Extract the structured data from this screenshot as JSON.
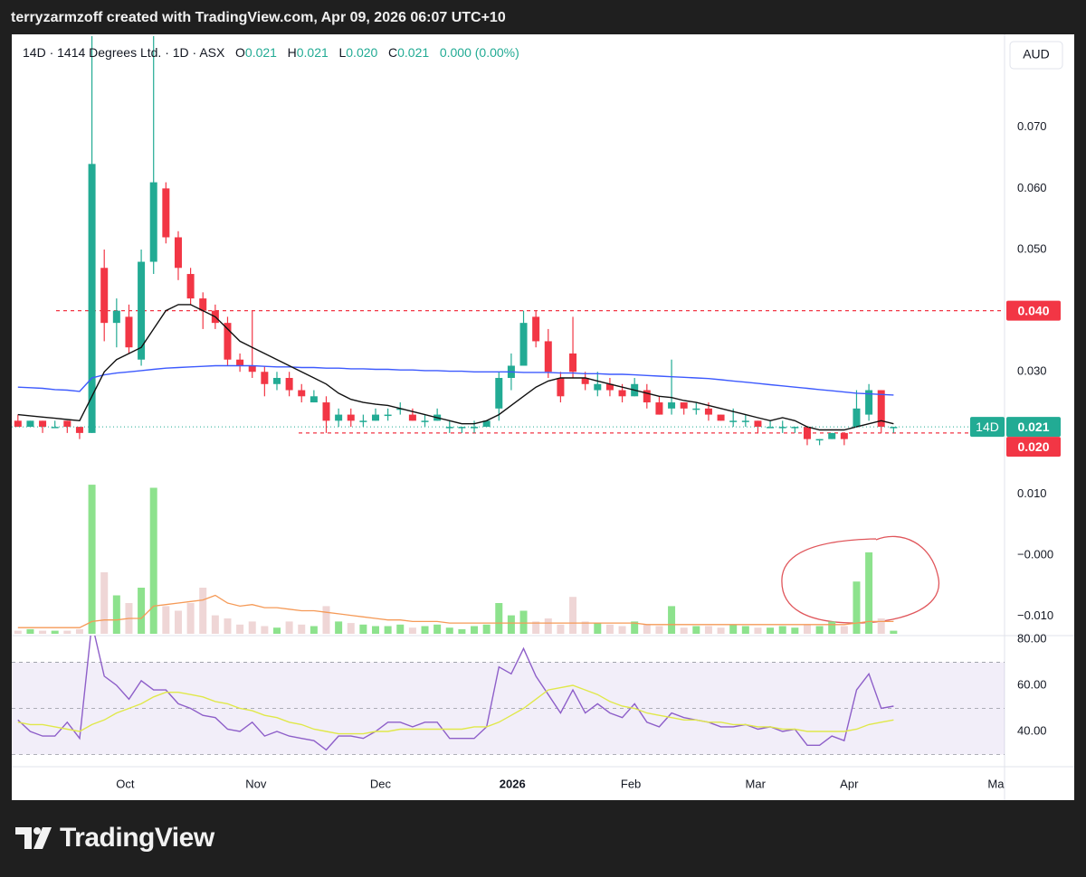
{
  "header": "terryzarmzoff created with TradingView.com, Apr 09, 2026 06:07 UTC+10",
  "legend": {
    "symbol": "14D · 1414 Degrees Ltd. · 1D · ASX",
    "fields": [
      {
        "label": "O",
        "value": "0.021"
      },
      {
        "label": "H",
        "value": "0.021"
      },
      {
        "label": "L",
        "value": "0.020"
      },
      {
        "label": "C",
        "value": "0.021"
      }
    ],
    "change": "0.000 (0.00%)"
  },
  "currency": "AUD",
  "footer": "TradingView",
  "chart_data": [
    {
      "type": "candlestick",
      "up_color": "#22ab94",
      "down_color": "#f23645",
      "xlim": [
        -0.5,
        80
      ],
      "xticks": [
        {
          "value": 8.7,
          "label": "Oct"
        },
        {
          "value": 19.3,
          "label": "Nov"
        },
        {
          "value": 29.4,
          "label": "Dec"
        },
        {
          "value": 40.1,
          "label": "2026"
        },
        {
          "value": 49.7,
          "label": "Feb"
        },
        {
          "value": 59.8,
          "label": "Mar"
        },
        {
          "value": 67.4,
          "label": "Apr"
        },
        {
          "value": 79.3,
          "label": "Ma"
        }
      ],
      "ylim": [
        -0.0127,
        0.0849
      ],
      "yticks": [
        {
          "value": 0.07,
          "label": "0.070"
        },
        {
          "value": 0.06,
          "label": "0.060"
        },
        {
          "value": 0.05,
          "label": "0.050"
        },
        {
          "value": 0.03,
          "label": "0.030"
        },
        {
          "value": 0.01,
          "label": "0.010"
        },
        {
          "value": 0,
          "label": "−0.000"
        },
        {
          "value": -0.01,
          "label": "−0.010"
        }
      ],
      "ohlc": [
        [
          0.022,
          0.023,
          0.021,
          0.021
        ],
        [
          0.021,
          0.022,
          0.021,
          0.022
        ],
        [
          0.022,
          0.022,
          0.02,
          0.021
        ],
        [
          0.021,
          0.022,
          0.021,
          0.021
        ],
        [
          0.022,
          0.022,
          0.02,
          0.021
        ],
        [
          0.021,
          0.021,
          0.019,
          0.02
        ],
        [
          0.02,
          0.085,
          0.02,
          0.064
        ],
        [
          0.047,
          0.05,
          0.035,
          0.038
        ],
        [
          0.038,
          0.042,
          0.034,
          0.04
        ],
        [
          0.039,
          0.041,
          0.033,
          0.034
        ],
        [
          0.032,
          0.05,
          0.031,
          0.048
        ],
        [
          0.048,
          0.085,
          0.046,
          0.061
        ],
        [
          0.06,
          0.061,
          0.051,
          0.052
        ],
        [
          0.052,
          0.053,
          0.045,
          0.047
        ],
        [
          0.046,
          0.047,
          0.041,
          0.042
        ],
        [
          0.042,
          0.043,
          0.037,
          0.04
        ],
        [
          0.04,
          0.041,
          0.037,
          0.038
        ],
        [
          0.038,
          0.039,
          0.031,
          0.032
        ],
        [
          0.032,
          0.033,
          0.03,
          0.031
        ],
        [
          0.031,
          0.04,
          0.029,
          0.03
        ],
        [
          0.03,
          0.031,
          0.026,
          0.028
        ],
        [
          0.028,
          0.03,
          0.027,
          0.029
        ],
        [
          0.029,
          0.03,
          0.026,
          0.027
        ],
        [
          0.027,
          0.028,
          0.025,
          0.026
        ],
        [
          0.025,
          0.027,
          0.025,
          0.026
        ],
        [
          0.025,
          0.026,
          0.02,
          0.022
        ],
        [
          0.022,
          0.024,
          0.021,
          0.023
        ],
        [
          0.023,
          0.024,
          0.021,
          0.022
        ],
        [
          0.022,
          0.023,
          0.021,
          0.022
        ],
        [
          0.022,
          0.024,
          0.022,
          0.023
        ],
        [
          0.023,
          0.024,
          0.022,
          0.023
        ],
        [
          0.024,
          0.025,
          0.023,
          0.024
        ],
        [
          0.023,
          0.024,
          0.022,
          0.022
        ],
        [
          0.022,
          0.023,
          0.021,
          0.022
        ],
        [
          0.022,
          0.024,
          0.022,
          0.023
        ],
        [
          0.021,
          0.022,
          0.02,
          0.021
        ],
        [
          0.021,
          0.021,
          0.02,
          0.021
        ],
        [
          0.021,
          0.022,
          0.02,
          0.021
        ],
        [
          0.021,
          0.022,
          0.021,
          0.022
        ],
        [
          0.024,
          0.03,
          0.022,
          0.029
        ],
        [
          0.029,
          0.033,
          0.027,
          0.031
        ],
        [
          0.031,
          0.04,
          0.031,
          0.038
        ],
        [
          0.039,
          0.04,
          0.034,
          0.035
        ],
        [
          0.035,
          0.037,
          0.029,
          0.03
        ],
        [
          0.029,
          0.03,
          0.025,
          0.026
        ],
        [
          0.033,
          0.039,
          0.029,
          0.03
        ],
        [
          0.029,
          0.03,
          0.027,
          0.028
        ],
        [
          0.027,
          0.03,
          0.026,
          0.028
        ],
        [
          0.028,
          0.029,
          0.026,
          0.027
        ],
        [
          0.027,
          0.028,
          0.025,
          0.026
        ],
        [
          0.026,
          0.029,
          0.026,
          0.028
        ],
        [
          0.027,
          0.028,
          0.024,
          0.025
        ],
        [
          0.025,
          0.026,
          0.023,
          0.023
        ],
        [
          0.024,
          0.032,
          0.023,
          0.025
        ],
        [
          0.025,
          0.025,
          0.023,
          0.024
        ],
        [
          0.024,
          0.025,
          0.023,
          0.024
        ],
        [
          0.024,
          0.025,
          0.022,
          0.023
        ],
        [
          0.023,
          0.023,
          0.022,
          0.022
        ],
        [
          0.022,
          0.024,
          0.021,
          0.022
        ],
        [
          0.022,
          0.023,
          0.021,
          0.022
        ],
        [
          0.022,
          0.022,
          0.02,
          0.021
        ],
        [
          0.021,
          0.022,
          0.021,
          0.021
        ],
        [
          0.021,
          0.022,
          0.02,
          0.021
        ],
        [
          0.021,
          0.021,
          0.02,
          0.021
        ],
        [
          0.021,
          0.021,
          0.018,
          0.019
        ],
        [
          0.019,
          0.019,
          0.018,
          0.019
        ],
        [
          0.019,
          0.02,
          0.019,
          0.02
        ],
        [
          0.02,
          0.02,
          0.018,
          0.019
        ],
        [
          0.021,
          0.027,
          0.021,
          0.024
        ],
        [
          0.023,
          0.028,
          0.022,
          0.027
        ],
        [
          0.027,
          0.027,
          0.02,
          0.021
        ],
        [
          0.021,
          0.021,
          0.02,
          0.021
        ]
      ],
      "lines": [
        {
          "color": "#3d5afe",
          "values": [
            0.0275,
            0.0274,
            0.0273,
            0.0271,
            0.027,
            0.0268,
            0.029,
            0.0295,
            0.0298,
            0.03,
            0.0302,
            0.0304,
            0.0306,
            0.0307,
            0.0308,
            0.0309,
            0.031,
            0.031,
            0.031,
            0.031,
            0.0309,
            0.0308,
            0.0308,
            0.0307,
            0.0307,
            0.0306,
            0.0306,
            0.0305,
            0.0305,
            0.0304,
            0.0304,
            0.0303,
            0.0303,
            0.0302,
            0.0302,
            0.0301,
            0.0301,
            0.03,
            0.03,
            0.03,
            0.03,
            0.0299,
            0.0299,
            0.0299,
            0.0298,
            0.0298,
            0.0297,
            0.0297,
            0.0296,
            0.0296,
            0.0295,
            0.0294,
            0.0293,
            0.0292,
            0.0291,
            0.029,
            0.0289,
            0.0287,
            0.0285,
            0.0283,
            0.0281,
            0.0279,
            0.0277,
            0.0275,
            0.0273,
            0.0271,
            0.0269,
            0.0267,
            0.0265,
            0.0264,
            0.0263,
            0.0262
          ]
        },
        {
          "color": "#111111",
          "values": [
            0.023,
            0.0228,
            0.0226,
            0.0224,
            0.0222,
            0.022,
            0.026,
            0.03,
            0.032,
            0.033,
            0.034,
            0.037,
            0.04,
            0.041,
            0.041,
            0.04,
            0.039,
            0.037,
            0.035,
            0.034,
            0.033,
            0.032,
            0.031,
            0.03,
            0.029,
            0.028,
            0.0265,
            0.0255,
            0.025,
            0.0247,
            0.0245,
            0.024,
            0.0235,
            0.023,
            0.0225,
            0.022,
            0.0215,
            0.0215,
            0.022,
            0.023,
            0.0245,
            0.026,
            0.0275,
            0.0285,
            0.029,
            0.029,
            0.029,
            0.0285,
            0.028,
            0.0275,
            0.027,
            0.0265,
            0.026,
            0.0258,
            0.0253,
            0.025,
            0.0245,
            0.024,
            0.0235,
            0.023,
            0.0225,
            0.022,
            0.0225,
            0.022,
            0.021,
            0.0205,
            0.0205,
            0.0205,
            0.021,
            0.0215,
            0.022,
            0.0215
          ]
        }
      ],
      "hlines": [
        {
          "value": 0.04,
          "color": "#f23645"
        },
        {
          "value": 0.02,
          "color": "#f23645"
        }
      ],
      "price_labels": [
        {
          "value": 0.04,
          "label": "0.040",
          "color": "#f23645"
        },
        {
          "value": 0.021,
          "label": "0.021",
          "tag": "14D",
          "color": "#22ab94"
        },
        {
          "value": 0.02,
          "label": "0.020",
          "color": "#f23645"
        }
      ]
    },
    {
      "type": "bar",
      "up_color": "#8de28d",
      "down_color": "#efd6d6",
      "ylim": [
        0,
        100
      ],
      "values": [
        2,
        3,
        2,
        2,
        2,
        3,
        97,
        40,
        25,
        20,
        30,
        95,
        18,
        15,
        20,
        30,
        12,
        10,
        6,
        8,
        5,
        4,
        8,
        6,
        5,
        18,
        8,
        7,
        6,
        5,
        5,
        6,
        4,
        5,
        6,
        4,
        3,
        5,
        6,
        20,
        12,
        15,
        8,
        10,
        6,
        24,
        8,
        7,
        6,
        5,
        8,
        6,
        5,
        18,
        4,
        5,
        5,
        4,
        6,
        5,
        4,
        4,
        5,
        4,
        6,
        5,
        8,
        5,
        34,
        53,
        10,
        2
      ],
      "ma": {
        "color": "#f59a57",
        "values": [
          4,
          4,
          4,
          4,
          4,
          4,
          8,
          9,
          9,
          10,
          10,
          18,
          19,
          20,
          21,
          22,
          25,
          20,
          18,
          19,
          17,
          17,
          16,
          15,
          15,
          14,
          13,
          12,
          11,
          10,
          9,
          9,
          8,
          8,
          8,
          7,
          7,
          7,
          7,
          7,
          7,
          7,
          7,
          7,
          7,
          7,
          7,
          7,
          7,
          7,
          7,
          6,
          6,
          6,
          6,
          6,
          6,
          6,
          6,
          6,
          6,
          6,
          6,
          6,
          6,
          6,
          6,
          6,
          7,
          8,
          8,
          8
        ]
      }
    },
    {
      "type": "line",
      "ylim": [
        24.7,
        81.6
      ],
      "yticks": [
        {
          "value": 80,
          "label": "80.00"
        },
        {
          "value": 60,
          "label": "60.00"
        },
        {
          "value": 40,
          "label": "40.00"
        }
      ],
      "bands": [
        30,
        50,
        70
      ],
      "band_fill": "rgba(126,87,194,0.10)",
      "series": [
        {
          "color": "#8e5fc9",
          "values": [
            45,
            40,
            38,
            38,
            44,
            37,
            87,
            64,
            60,
            54,
            62,
            58,
            58,
            52,
            50,
            47,
            46,
            41,
            40,
            44,
            38,
            40,
            38,
            37,
            36,
            32,
            38,
            38,
            37,
            40,
            44,
            44,
            42,
            44,
            44,
            37,
            37,
            37,
            42,
            68,
            65,
            76,
            64,
            56,
            48,
            58,
            48,
            52,
            48,
            46,
            52,
            44,
            42,
            48,
            46,
            45,
            44,
            42,
            42,
            43,
            41,
            42,
            40,
            41,
            34,
            34,
            38,
            36,
            58,
            65,
            50,
            51
          ]
        },
        {
          "color": "#e0e84a",
          "values": [
            44,
            43,
            43,
            42,
            41,
            40,
            43,
            45,
            48,
            50,
            52,
            55,
            57,
            57,
            56,
            55,
            53,
            52,
            50,
            49,
            47,
            46,
            44,
            43,
            41,
            40,
            39,
            39,
            39,
            40,
            40,
            41,
            41,
            41,
            41,
            41,
            41,
            42,
            42,
            44,
            47,
            50,
            54,
            58,
            59,
            60,
            58,
            56,
            53,
            51,
            50,
            48,
            47,
            46,
            45,
            45,
            44,
            44,
            43,
            43,
            42,
            42,
            41,
            41,
            40,
            40,
            40,
            40,
            41,
            43,
            44,
            45
          ]
        }
      ]
    }
  ]
}
